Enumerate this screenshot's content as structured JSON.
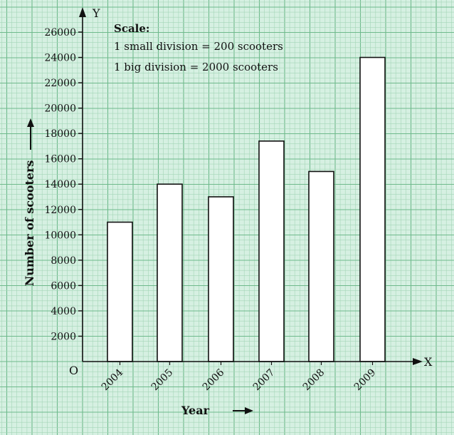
{
  "chart_data": {
    "type": "bar",
    "categories": [
      "2004",
      "2005",
      "2006",
      "2007",
      "2008",
      "2009"
    ],
    "values": [
      11000,
      14000,
      13000,
      17400,
      15000,
      24000
    ],
    "xlabel": "Year",
    "ylabel": "Number of scooters",
    "ylim": [
      0,
      26000
    ],
    "yticks": [
      2000,
      4000,
      6000,
      8000,
      10000,
      12000,
      14000,
      16000,
      18000,
      20000,
      22000,
      24000,
      26000
    ],
    "x_axis_letter": "X",
    "y_axis_letter": "Y",
    "origin_label": "O",
    "grid": true,
    "scale_note": {
      "heading": "Scale:",
      "line1": "1 small division = 200 scooters",
      "line2": "1 big division = 2000 scooters"
    },
    "colors": {
      "paper": "#d6f0e2",
      "grid_minor": "#a5d6b8",
      "grid_major": "#6fba8c",
      "bar_fill": "#ffffff",
      "ink": "#111111"
    }
  }
}
